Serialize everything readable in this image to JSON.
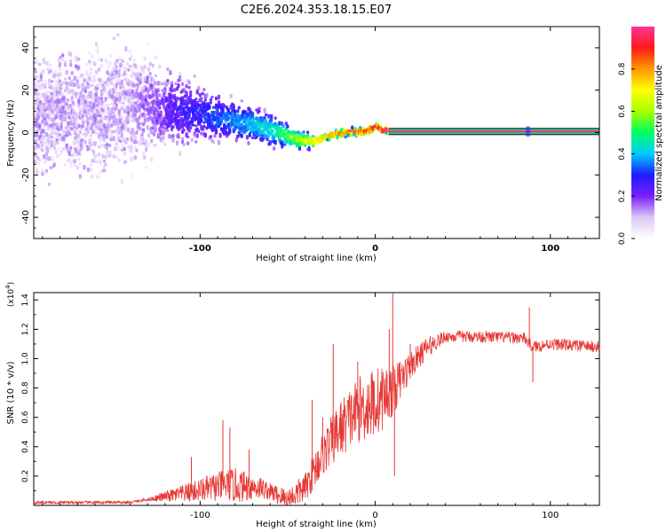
{
  "title": "C2E6.2024.353.18.15.E07",
  "chart_data": [
    {
      "type": "heatmap",
      "xlabel": "Height of straight line (km)",
      "ylabel": "Frequency (Hz)",
      "xlim": [
        -195,
        128
      ],
      "ylim": [
        -50,
        50
      ],
      "x_ticks": [
        -100,
        0,
        100
      ],
      "y_ticks": [
        -40,
        -20,
        0,
        20,
        40
      ],
      "colorbar": {
        "label": "Normalized spectral amplitude",
        "ticks": [
          "0.0",
          "0.2",
          "0.4",
          "0.6",
          "0.8"
        ],
        "range": [
          0,
          1
        ]
      },
      "ridge": {
        "x": [
          -195,
          -160,
          -130,
          -110,
          -90,
          -70,
          -55,
          -45,
          -35,
          -25,
          -15,
          -5,
          0,
          5,
          10,
          128
        ],
        "y": [
          8,
          9,
          13,
          10,
          7,
          4,
          0,
          -3,
          -4,
          -1,
          0.5,
          0.5,
          3,
          1.5,
          0.5,
          0.5
        ]
      },
      "spread_hz": {
        "x": [
          -195,
          -140,
          -100,
          -60,
          -45,
          -30,
          0,
          10,
          128
        ],
        "y": [
          45,
          45,
          20,
          12,
          8,
          3,
          3,
          1.5,
          1.5
        ]
      },
      "amplitude": {
        "x": [
          -195,
          -140,
          -100,
          -60,
          -45,
          -30,
          -10,
          0,
          10,
          128
        ],
        "y": [
          0.08,
          0.1,
          0.25,
          0.4,
          0.55,
          0.7,
          0.85,
          0.9,
          1.0,
          1.0
        ]
      }
    },
    {
      "type": "line",
      "xlabel": "Height of straight line (km)",
      "ylabel": "SNR (10 * v/v)",
      "y_multiplier": "(x10",
      "y_multiplier_exp": "4",
      "xlim": [
        -195,
        128
      ],
      "ylim": [
        0,
        1.45
      ],
      "x_ticks": [
        -100,
        0,
        100
      ],
      "y_ticks": [
        "0.2",
        "0.4",
        "0.6",
        "0.8",
        "1.0",
        "1.2",
        "1.4"
      ],
      "series": [
        {
          "color": "#e53935",
          "baseline": {
            "x": [
              -195,
              -140,
              -110,
              -85,
              -65,
              -50,
              -40,
              -30,
              -20,
              -10,
              0,
              10,
              20,
              30,
              40,
              60,
              85,
              90,
              100,
              128
            ],
            "y": [
              0.02,
              0.02,
              0.08,
              0.14,
              0.12,
              0.04,
              0.12,
              0.35,
              0.52,
              0.65,
              0.7,
              0.78,
              0.95,
              1.08,
              1.15,
              1.15,
              1.14,
              1.08,
              1.1,
              1.08
            ]
          },
          "noise": {
            "x": [
              -195,
              -130,
              -110,
              -80,
              -60,
              -40,
              -20,
              0,
              20,
              40,
              128
            ],
            "y": [
              0.01,
              0.01,
              0.06,
              0.12,
              0.06,
              0.1,
              0.2,
              0.25,
              0.1,
              0.04,
              0.04
            ]
          },
          "spikes": [
            {
              "x": -105,
              "y": 0.33
            },
            {
              "x": -87,
              "y": 0.58
            },
            {
              "x": -83,
              "y": 0.53
            },
            {
              "x": -72,
              "y": 0.38
            },
            {
              "x": -36,
              "y": 0.72
            },
            {
              "x": -30,
              "y": 0.6
            },
            {
              "x": -24,
              "y": 1.1
            },
            {
              "x": -10,
              "y": 0.98
            },
            {
              "x": 8,
              "y": 1.2
            },
            {
              "x": 10,
              "y": 1.45
            },
            {
              "x": 11,
              "y": 0.2
            },
            {
              "x": 20,
              "y": 1.1
            },
            {
              "x": 88,
              "y": 1.35
            },
            {
              "x": 90,
              "y": 0.84
            }
          ]
        }
      ]
    }
  ]
}
